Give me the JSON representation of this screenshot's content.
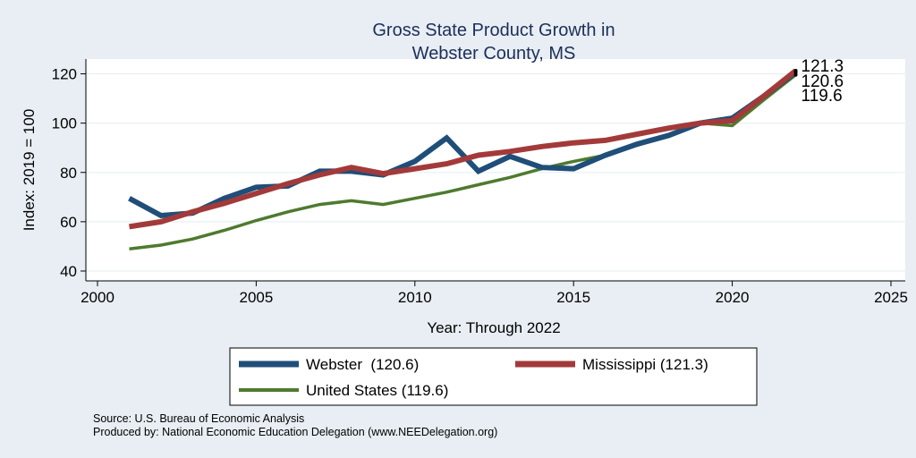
{
  "chart_data": {
    "type": "line",
    "title_lines": [
      "Gross State Product Growth in",
      "Webster County, MS"
    ],
    "xlabel": "Year: Through 2022",
    "ylabel": "Index: 2019 = 100",
    "xlim": [
      2000,
      2025
    ],
    "ylim": [
      36,
      126
    ],
    "x_ticks": [
      2000,
      2005,
      2010,
      2015,
      2020,
      2025
    ],
    "y_ticks": [
      40,
      60,
      80,
      100,
      120
    ],
    "grid": true,
    "legend_position": "bottom",
    "x": [
      2001,
      2002,
      2003,
      2004,
      2005,
      2006,
      2007,
      2008,
      2009,
      2010,
      2011,
      2012,
      2013,
      2014,
      2015,
      2016,
      2017,
      2018,
      2019,
      2020,
      2021,
      2022
    ],
    "series": [
      {
        "name": "Webster",
        "legend_label": "Webster  (120.6)",
        "end_label": "120.6",
        "color": "#1f4e79",
        "values": [
          69.5,
          62.5,
          63.5,
          69.5,
          74.0,
          74.5,
          80.5,
          80.5,
          79.0,
          84.5,
          94.0,
          80.5,
          86.5,
          82.0,
          81.5,
          87.0,
          91.5,
          95.0,
          100.0,
          102.0,
          111.0,
          120.6
        ]
      },
      {
        "name": "Mississippi",
        "legend_label": "Mississippi (121.3)",
        "end_label": "121.3",
        "color": "#a33a3a",
        "values": [
          58.0,
          60.0,
          64.0,
          67.5,
          71.5,
          75.5,
          79.0,
          82.0,
          79.5,
          81.5,
          83.5,
          87.0,
          88.5,
          90.5,
          92.0,
          93.0,
          95.5,
          98.0,
          100.0,
          101.0,
          111.0,
          121.3
        ]
      },
      {
        "name": "United States",
        "legend_label": "United States (119.6)",
        "end_label": "119.6",
        "color": "#4e7a2e",
        "values": [
          49.0,
          50.5,
          53.0,
          56.5,
          60.5,
          64.0,
          67.0,
          68.5,
          67.0,
          69.5,
          72.0,
          75.0,
          78.0,
          81.5,
          84.5,
          87.0,
          91.0,
          95.0,
          100.0,
          99.0,
          109.5,
          119.6
        ]
      }
    ],
    "source_lines": [
      "Source: U.S. Bureau of Economic Analysis",
      "Produced by: National Economic Education Delegation (www.NEEDelegation.org)"
    ]
  }
}
